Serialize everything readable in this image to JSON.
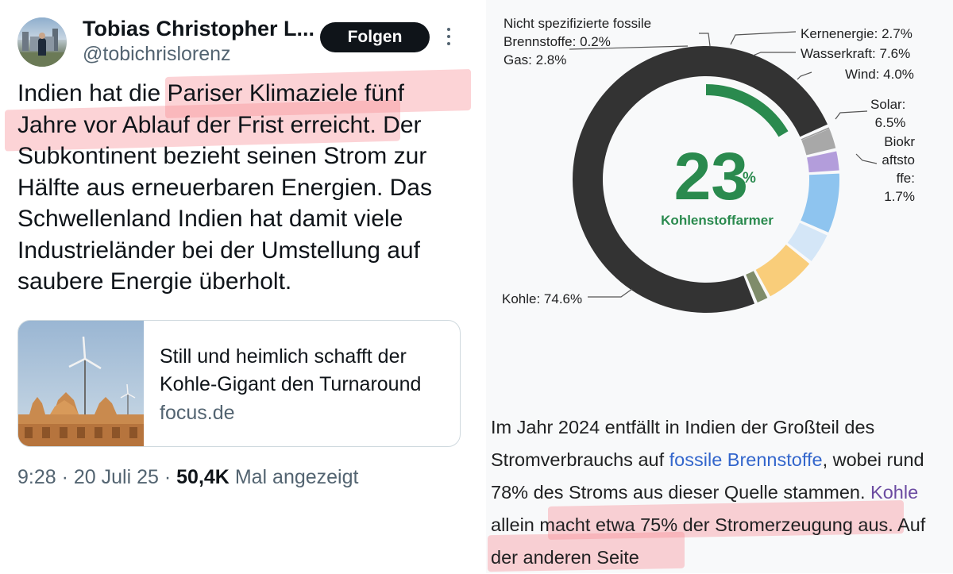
{
  "tweet": {
    "author_name": "Tobias Christopher L...",
    "handle": "@tobichrislorenz",
    "follow_label": "Folgen",
    "text_parts": {
      "pre": "Indien hat die ",
      "highlight": "Pariser Klimaziele fünf Jahre vor Ablauf der Frist erreicht",
      "post": ". Der Subkontinent bezieht seinen Strom zur Hälfte aus erneuerbaren Energien. Das Schwellenland Indien hat damit viele Industrieländer bei der Umstellung auf saubere Energie überholt."
    },
    "card": {
      "title": "Still und heimlich schafft der Kohle-Gigant den Turnaround",
      "domain": "focus.de"
    },
    "meta": {
      "time": "9:28",
      "date": "20 Juli 25",
      "views": "50,4K",
      "views_suffix": "Mal angezeigt"
    }
  },
  "chart": {
    "center_value": "23",
    "center_unit": "%",
    "center_label": "Kohlenstoffarmer",
    "labels": {
      "kohle": "Kohle: 74.6%",
      "fossil_line1": "Nicht spezifizierte fossile",
      "fossil_line2": "Brennstoffe: 0.2%",
      "gas": "Gas: 2.8%",
      "kern": "Kernenergie: 2.7%",
      "wasser": "Wasserkraft: 7.6%",
      "wind": "Wind: 4.0%",
      "solar_line1": "Solar:",
      "solar_line2": "6.5%",
      "bio_line1": "Biokr",
      "bio_line2": "aftsto",
      "bio_line3": "ffe:",
      "bio_line4": "1.7%"
    },
    "colors": {
      "kohle": "#333333",
      "fossil": "#999999",
      "gas": "#a8a8a8",
      "kern": "#b39ddb",
      "wasser": "#8ec4ef",
      "wind": "#d4e6f7",
      "solar": "#f9cd7a",
      "bio": "#7f8c6a",
      "accent": "#2a8a4e"
    }
  },
  "chart_data": {
    "type": "pie",
    "categories": [
      "Kohle",
      "Nicht spezifizierte fossile Brennstoffe",
      "Gas",
      "Kernenergie",
      "Wasserkraft",
      "Wind",
      "Solar",
      "Biokraftstoffe"
    ],
    "values": [
      74.6,
      0.2,
      2.8,
      2.7,
      7.6,
      4.0,
      6.5,
      1.7
    ],
    "center_value": 23,
    "center_label": "Kohlenstoffarmer"
  },
  "wiki": {
    "p1": "Im Jahr 2024 entfällt in Indien der Großteil des Stromverbrauchs auf ",
    "link1": "fossile Brennstoffe",
    "p2": ", wobei rund 78% des Stroms aus dieser Quelle stammen. ",
    "link2": "Kohle",
    "p3": " allein macht etwa 75% der Stromerzeugung aus. Auf der anderen Seite"
  }
}
